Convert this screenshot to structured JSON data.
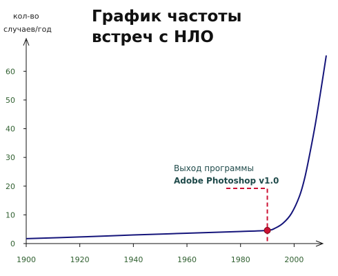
{
  "chart_data": {
    "type": "line",
    "title_lines": [
      "График частоты",
      "встреч с НЛО"
    ],
    "ylabel_lines": [
      "кол-во",
      "случаев/год"
    ],
    "xlabel": "",
    "xlim": [
      1900,
      2012
    ],
    "ylim": [
      0,
      68
    ],
    "xticks": [
      1900,
      1920,
      1940,
      1960,
      1980,
      2000
    ],
    "yticks": [
      0,
      10,
      20,
      30,
      40,
      50,
      60
    ],
    "grid": false,
    "legend": "none",
    "series": [
      {
        "color": "#14147a",
        "x": [
          1900,
          1920,
          1940,
          1960,
          1980,
          1990,
          1993,
          1996,
          1999,
          2002,
          2004,
          2006,
          2008,
          2010,
          2012
        ],
        "y": [
          1.7,
          2.3,
          3.0,
          3.6,
          4.2,
          4.6,
          5.4,
          7.2,
          10.5,
          16.5,
          23.0,
          32.0,
          42.0,
          53.5,
          65.5
        ]
      }
    ],
    "annotations": [
      {
        "line1": "Выход программы",
        "line2": "Adobe Photoshop v1.0",
        "point": {
          "x": 1990,
          "y": 4.6
        },
        "marker_color": "#cc1133",
        "leader_color": "#cc1133"
      }
    ]
  }
}
